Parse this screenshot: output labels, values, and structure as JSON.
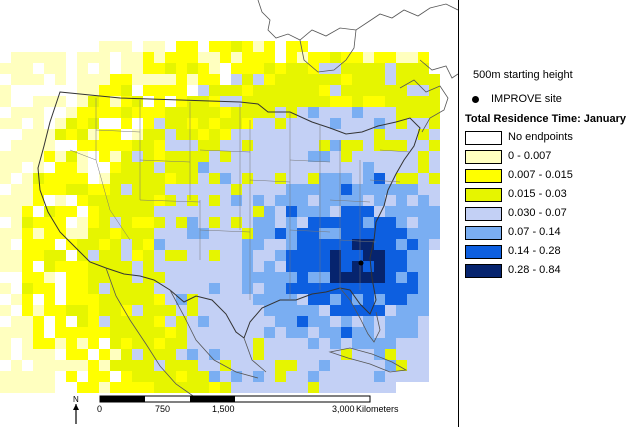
{
  "legend": {
    "start_height": "500m starting height",
    "site_label": "IMPROVE site",
    "title": "Total Residence Time: January",
    "classes": [
      {
        "label": "No endpoints",
        "color": "#ffffff"
      },
      {
        "label": "0 - 0.007",
        "color": "#ffffbf"
      },
      {
        "label": "0.007 - 0.015",
        "color": "#ffff00"
      },
      {
        "label": "0.015 - 0.03",
        "color": "#e6f500"
      },
      {
        "label": "0.030 - 0.07",
        "color": "#c3d0f5"
      },
      {
        "label": "0.07 - 0.14",
        "color": "#7aaef2"
      },
      {
        "label": "0.14 - 0.28",
        "color": "#0d5fe0"
      },
      {
        "label": "0.28 - 0.84",
        "color": "#06246e"
      }
    ]
  },
  "scale_bar": {
    "ticks": [
      "0",
      "750",
      "1,500",
      "3,000"
    ],
    "unit": "Kilometers"
  },
  "north_arrow": {
    "label": "N",
    "icon": "north-arrow-icon"
  },
  "colors": {
    "land_outline": "#555555",
    "frame": "#000000"
  }
}
